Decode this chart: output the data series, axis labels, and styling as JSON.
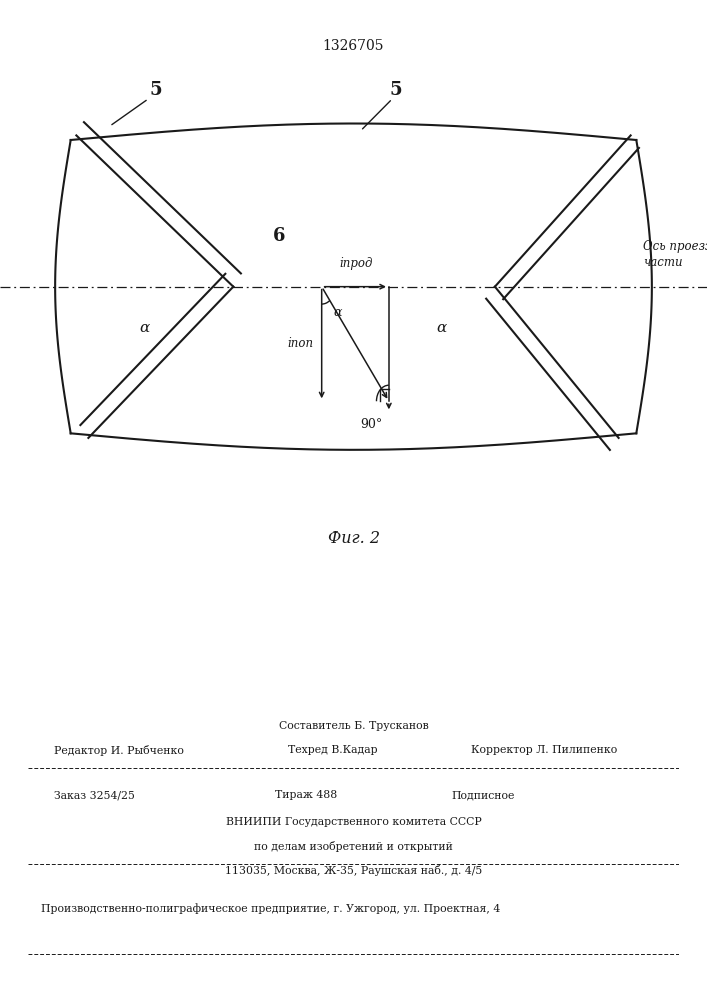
{
  "patent_number": "1326705",
  "fig_caption": "Фиг. 2",
  "bg_color": "#ffffff",
  "line_color": "#1a1a1a",
  "label_5_left": "5",
  "label_5_right": "5",
  "label_6": "6",
  "label_alpha_left": "α",
  "label_alpha_right": "α",
  "label_alpha_small": "α",
  "label_i_prod": "iпрод",
  "label_i_pop": "iпоп",
  "label_90": "90°",
  "label_axis": "Ось проезжей\nчасти",
  "footer_line1": "Составитель Б. Трусканов",
  "footer_line2": "Редактор И. Рыбченко",
  "footer_line3": "Техред В.Кадар",
  "footer_line4": "Корректор Л. Пилипенко",
  "footer_line5": "Заказ 3254/25",
  "footer_line6": "Тираж 488",
  "footer_line7": "Подписное",
  "footer_line8": "ВНИИПИ Государственного комитета СССР",
  "footer_line9": "по делам изобретений и открытий",
  "footer_line10": "113035, Москва, Ж-35, Раушская наб., д. 4/5",
  "footer_line11": "Производственно-полиграфическое предприятие, г. Ужгород, ул. Проектная, 4"
}
